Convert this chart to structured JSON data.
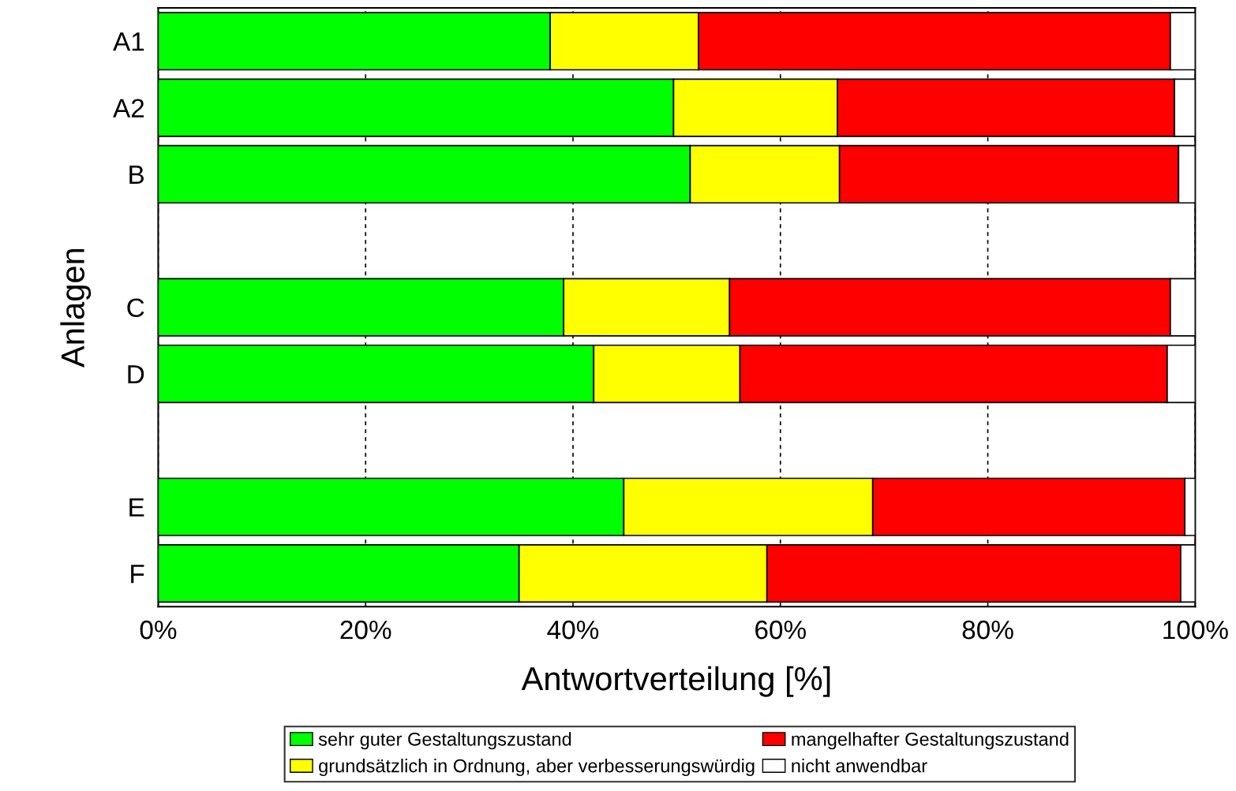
{
  "chart_data": {
    "type": "bar",
    "orientation": "horizontal",
    "stacked": true,
    "xlabel": "Antwortverteilung [%]",
    "ylabel": "Anlagen",
    "categories": [
      "A1",
      "A2",
      "B",
      null,
      "C",
      "D",
      null,
      "E",
      "F"
    ],
    "series": [
      {
        "name": "sehr guter Gestaltungszustand",
        "color": "#00ff00",
        "values": [
          37.8,
          49.7,
          51.3,
          null,
          39.1,
          42.0,
          null,
          44.9,
          34.8
        ]
      },
      {
        "name": "grundsätzlich in Ordnung, aber verbesserungswürdig",
        "color": "#ffff00",
        "values": [
          14.3,
          15.8,
          14.4,
          null,
          16.0,
          14.1,
          null,
          24.0,
          23.9
        ]
      },
      {
        "name": "mangelhafter Gestaltungszustand",
        "color": "#ff0000",
        "values": [
          45.5,
          32.5,
          32.7,
          null,
          42.5,
          41.2,
          null,
          30.1,
          39.9
        ]
      },
      {
        "name": "nicht anwendbar",
        "color": "#ffffff",
        "values": [
          2.4,
          2.0,
          1.6,
          null,
          2.4,
          2.7,
          null,
          1.0,
          1.4
        ]
      }
    ],
    "xlim": [
      0,
      100
    ],
    "xticks": [
      {
        "value": 0,
        "label": "0%"
      },
      {
        "value": 20,
        "label": "20%"
      },
      {
        "value": 40,
        "label": "40%"
      },
      {
        "value": 60,
        "label": "60%"
      },
      {
        "value": 80,
        "label": "80%"
      },
      {
        "value": 100,
        "label": "100%"
      }
    ],
    "grid": "x",
    "legend": "bottom"
  }
}
